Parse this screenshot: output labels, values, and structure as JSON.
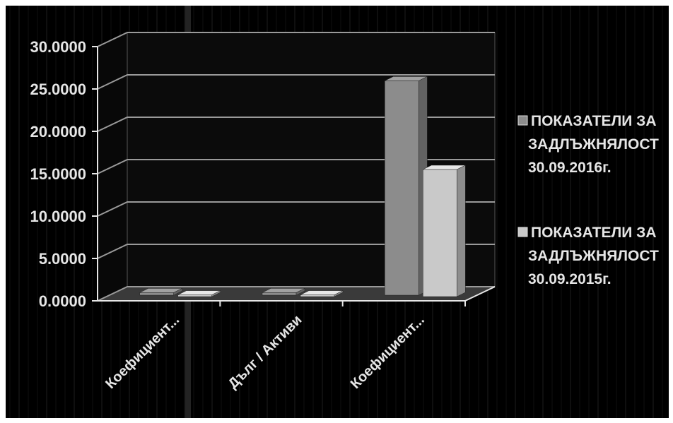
{
  "chart_data": {
    "type": "bar",
    "style": "3d-clustered-column",
    "categories": [
      "Коефициент...",
      "Дълг / Активи",
      "Коефициент..."
    ],
    "series": [
      {
        "name": "ПОКАЗАТЕЛИ ЗА ЗАДЛЪЖНЯЛОСТ 30.09.2016г.",
        "values": [
          0.3,
          0.3,
          25.3
        ],
        "color": "#8c8c8c"
      },
      {
        "name": "ПОКАЗАТЕЛИ ЗА ЗАДЛЪЖНЯЛОСТ 30.09.2015г.",
        "values": [
          0.2,
          0.2,
          15.0
        ],
        "color": "#c9c9c9"
      }
    ],
    "y_ticks": [
      "0.0000",
      "5.0000",
      "10.0000",
      "15.0000",
      "20.0000",
      "25.0000",
      "30.0000"
    ],
    "ylim": [
      0,
      30
    ],
    "grid": true,
    "legend_position": "right",
    "legend": [
      {
        "lines": [
          "ПОКАЗАТЕЛИ ЗА",
          "ЗАДЛЪЖНЯЛОСТ",
          "30.09.2016г."
        ]
      },
      {
        "lines": [
          "ПОКАЗАТЕЛИ ЗА",
          "ЗАДЛЪЖНЯЛОСТ",
          "30.09.2015г."
        ]
      }
    ],
    "colors": {
      "background": "#000000",
      "text": "#e6e6e6",
      "grid": "#9a9a9a",
      "floor": "#3a3a3a"
    }
  }
}
